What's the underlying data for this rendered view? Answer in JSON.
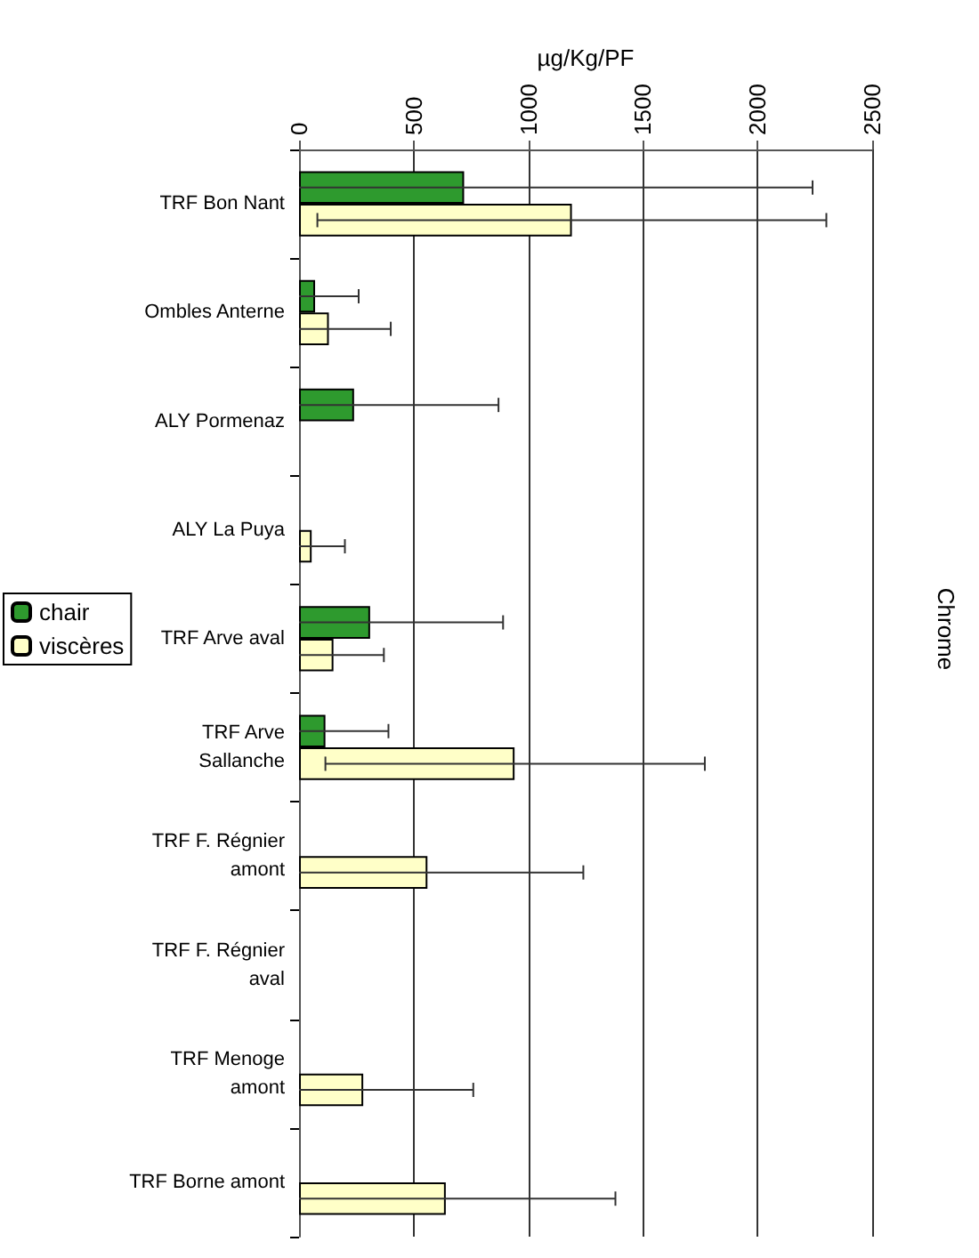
{
  "chart_data": {
    "type": "bar",
    "orientation": "horizontal",
    "title": "Chrome",
    "xlabel": "µg/Kg/PF",
    "categories": [
      "TRF Bon Nant",
      "Ombles Anterne",
      "ALY Pormenaz",
      "ALY La Puya",
      "TRF Arve aval",
      "TRF Arve\nSallanche",
      "TRF F. Régnier\namont",
      "TRF F. Régnier\naval",
      "TRF Menoge\namont",
      "TRF Borne amont"
    ],
    "series": [
      {
        "name": "chair",
        "color": "#2e9a2e",
        "values": [
          720,
          70,
          240,
          null,
          310,
          115,
          null,
          null,
          null,
          null
        ],
        "errors": [
          [
            0,
            2240
          ],
          [
            0,
            260
          ],
          [
            0,
            870
          ],
          null,
          [
            0,
            890
          ],
          [
            0,
            390
          ],
          null,
          null,
          null,
          null
        ]
      },
      {
        "name": "viscères",
        "color": "#ffffc8",
        "values": [
          1190,
          130,
          null,
          55,
          150,
          940,
          560,
          null,
          280,
          640
        ],
        "errors": [
          [
            80,
            2300
          ],
          [
            0,
            400
          ],
          null,
          [
            0,
            200
          ],
          [
            0,
            370
          ],
          [
            115,
            1770
          ],
          [
            0,
            1240
          ],
          null,
          [
            0,
            760
          ],
          [
            0,
            1380
          ]
        ]
      }
    ],
    "xlim": [
      0,
      2500
    ],
    "xticks": [
      0,
      500,
      1000,
      1500,
      2000,
      2500
    ],
    "grid": "x",
    "legend": "left"
  }
}
